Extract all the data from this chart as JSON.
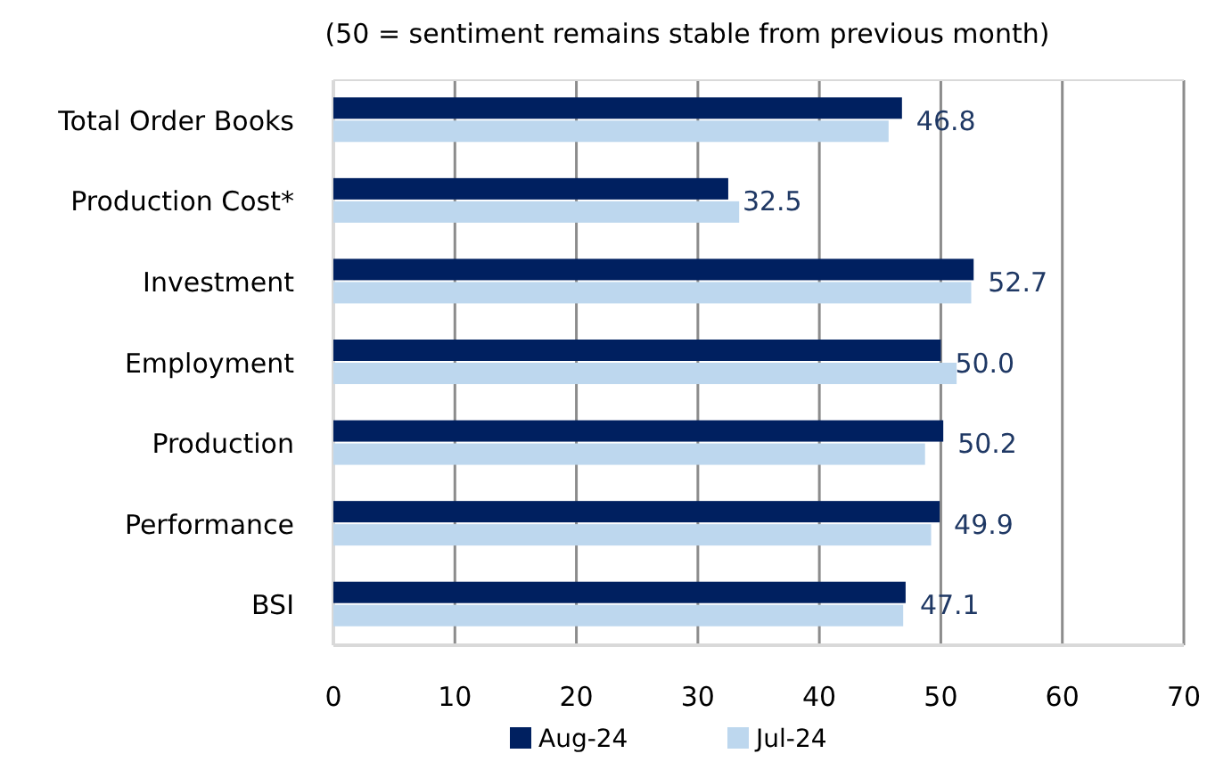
{
  "chart_data": {
    "type": "bar",
    "orientation": "horizontal",
    "title": "(50 = sentiment remains stable from previous month)",
    "categories": [
      "Total Order Books",
      "Production Cost*",
      "Investment",
      "Employment",
      "Production",
      "Performance",
      "BSI"
    ],
    "series": [
      {
        "name": "Aug-24",
        "color": "#002060",
        "values": [
          46.8,
          32.5,
          52.7,
          50.0,
          50.2,
          49.9,
          47.1
        ],
        "value_labels": [
          "46.8",
          "32.5",
          "52.7",
          "50.0",
          "50.2",
          "49.9",
          "47.1"
        ]
      },
      {
        "name": "Jul-24",
        "color": "#bdd7ee",
        "values": [
          45.7,
          33.4,
          52.5,
          51.3,
          48.7,
          49.2,
          46.9
        ]
      }
    ],
    "xlim": [
      0,
      70
    ],
    "xticks": [
      0,
      10,
      20,
      30,
      40,
      50,
      60,
      70
    ],
    "grid": "x",
    "legend": "bottom"
  }
}
